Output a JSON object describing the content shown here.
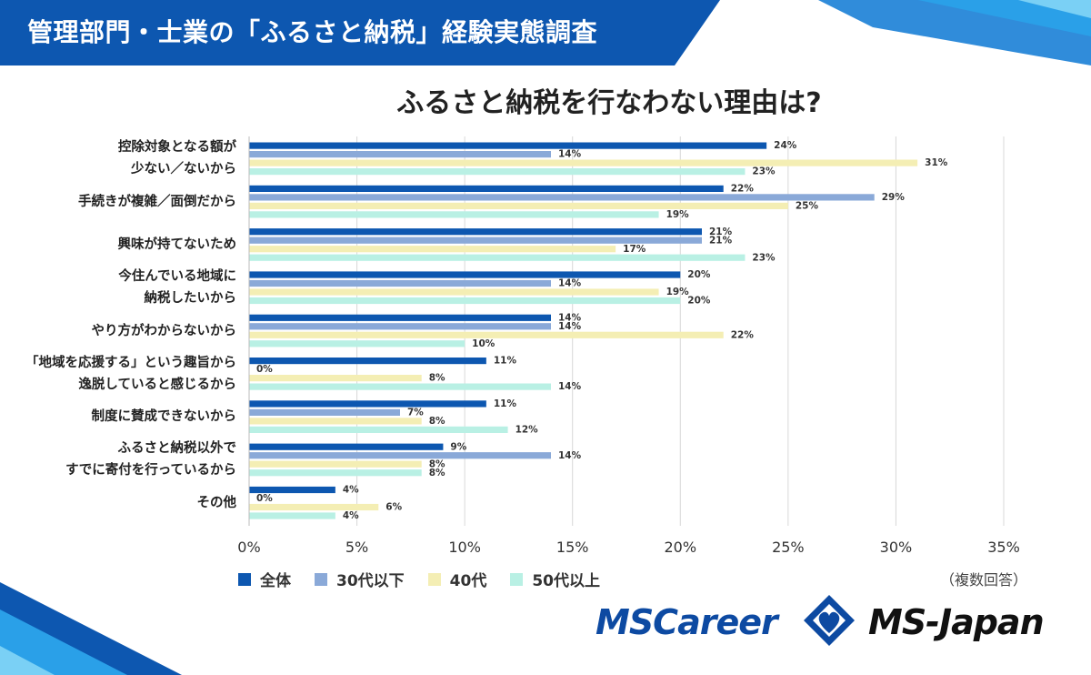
{
  "header": {
    "title": "管理部門・士業の「ふるさと納税」経験実態調査"
  },
  "chart_data": {
    "type": "bar",
    "orientation": "horizontal",
    "title": "ふるさと納税を行なわない理由は?",
    "categories": [
      [
        "控除対象となる額が",
        "少ない／ないから"
      ],
      [
        "手続きが複雑／面倒だから"
      ],
      [
        "興味が持てないため"
      ],
      [
        "今住んでいる地域に",
        "納税したいから"
      ],
      [
        "やり方がわからないから"
      ],
      [
        "「地域を応援する」という趣旨から",
        "逸脱していると感じるから"
      ],
      [
        "制度に賛成できないから"
      ],
      [
        "ふるさと納税以外で",
        "すでに寄付を行っているから"
      ],
      [
        "その他"
      ]
    ],
    "series": [
      {
        "name": "全体",
        "color": "#0d57b0",
        "values": [
          24,
          22,
          21,
          20,
          14,
          11,
          11,
          9,
          4
        ]
      },
      {
        "name": "30代以下",
        "color": "#8aa9d8",
        "values": [
          14,
          29,
          21,
          14,
          14,
          0,
          7,
          14,
          0
        ]
      },
      {
        "name": "40代",
        "color": "#f4eeb4",
        "values": [
          31,
          25,
          17,
          19,
          22,
          8,
          8,
          8,
          6
        ]
      },
      {
        "name": "50代以上",
        "color": "#b9f0e4",
        "values": [
          23,
          19,
          23,
          20,
          10,
          14,
          12,
          8,
          4
        ]
      }
    ],
    "xlim": [
      0,
      35
    ],
    "xticks": [
      "0%",
      "5%",
      "10%",
      "15%",
      "20%",
      "25%",
      "30%",
      "35%"
    ],
    "value_suffix": "%",
    "grid": true,
    "legend_position": "bottom-left"
  },
  "legend": [
    "全体",
    "30代以下",
    "40代",
    "50代以上"
  ],
  "note": "（複数回答）",
  "logos": {
    "left": "MSCareer",
    "right": "MS-Japan"
  }
}
